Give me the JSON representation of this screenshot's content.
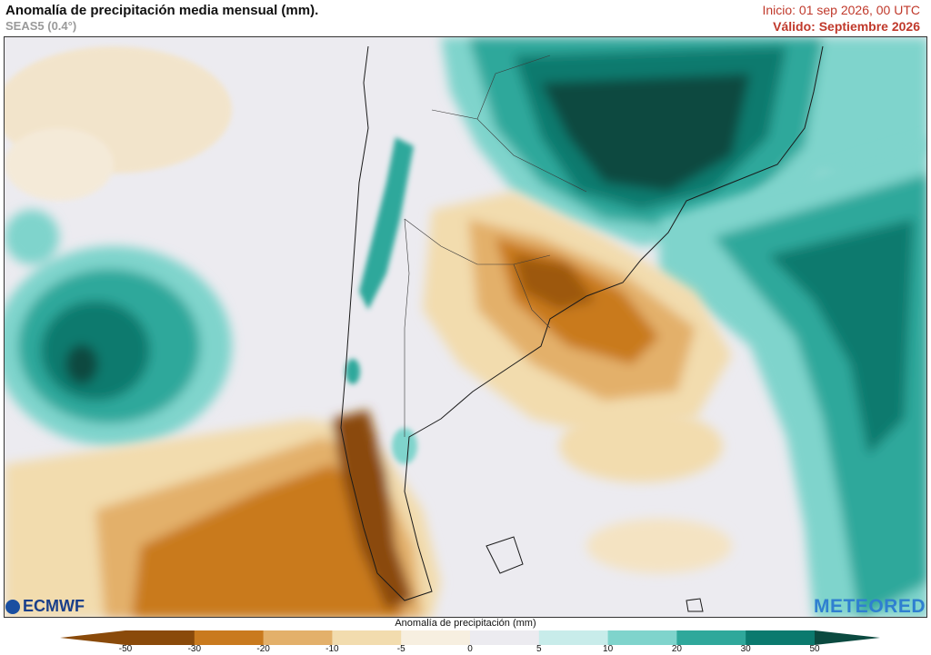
{
  "header": {
    "title": "Anomalía de precipitación media mensual (mm).",
    "subtitle": "SEAS5 (0.4°)",
    "init": "Inicio: 01 sep 2026, 00 UTC",
    "valid": "Válido: Septiembre 2026"
  },
  "logos": {
    "left": "ECMWF",
    "right": "METEORED"
  },
  "colorbar": {
    "title": "Anomalía de precipitación (mm)",
    "ticks": [
      "-50",
      "-30",
      "-20",
      "-10",
      "-5",
      "0",
      "5",
      "10",
      "20",
      "30",
      "50"
    ],
    "colors": [
      "#8a4a0a",
      "#c97a1e",
      "#e3b06a",
      "#f2dcae",
      "#f7efe0",
      "#ecebf0",
      "#c8ecea",
      "#7fd4cc",
      "#2fa89b",
      "#0b7a6e",
      "#0b4a40"
    ]
  }
}
